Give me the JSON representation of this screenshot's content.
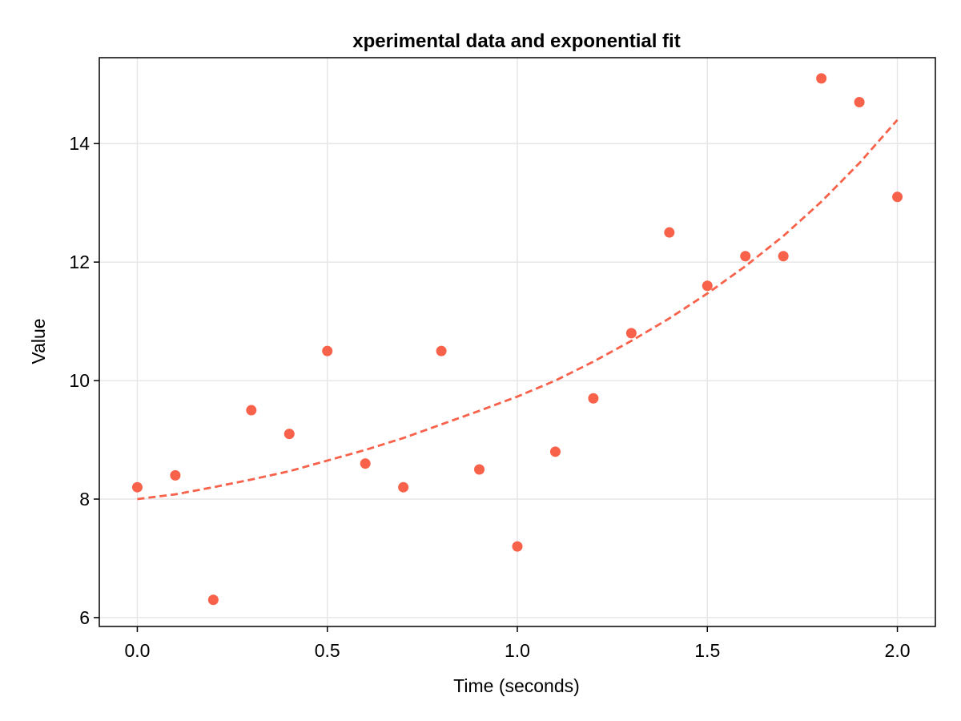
{
  "chart_data": {
    "type": "scatter",
    "title": "xperimental data and exponential fit",
    "xlabel": "Time (seconds)",
    "ylabel": "Value",
    "xlim": [
      -0.1,
      2.1
    ],
    "ylim": [
      5.85,
      15.45
    ],
    "xticks": [
      0.0,
      0.5,
      1.0,
      1.5,
      2.0
    ],
    "xtick_labels": [
      "0.0",
      "0.5",
      "1.0",
      "1.5",
      "2.0"
    ],
    "yticks": [
      6,
      8,
      10,
      12,
      14
    ],
    "ytick_labels": [
      "6",
      "8",
      "10",
      "12",
      "14"
    ],
    "grid": true,
    "legend": "none",
    "series": [
      {
        "kind": "scatter",
        "color": "#f8614a",
        "x": [
          0.0,
          0.1,
          0.2,
          0.3,
          0.4,
          0.5,
          0.6,
          0.7,
          0.8,
          0.9,
          1.0,
          1.1,
          1.2,
          1.3,
          1.4,
          1.5,
          1.6,
          1.7,
          1.8,
          1.9,
          2.0
        ],
        "y": [
          8.2,
          8.4,
          6.3,
          9.5,
          9.1,
          10.5,
          8.6,
          8.2,
          10.5,
          8.5,
          7.2,
          8.8,
          9.7,
          10.8,
          12.5,
          11.6,
          12.1,
          12.1,
          15.1,
          14.7,
          13.1
        ]
      },
      {
        "kind": "line",
        "style": "dashed",
        "color": "#f8614a",
        "x": [
          0.0,
          0.1,
          0.2,
          0.3,
          0.4,
          0.5,
          0.6,
          0.7,
          0.8,
          0.9,
          1.0,
          1.1,
          1.2,
          1.3,
          1.4,
          1.5,
          1.6,
          1.7,
          1.8,
          1.9,
          2.0
        ],
        "y": [
          8.0,
          8.08,
          8.2,
          8.33,
          8.47,
          8.65,
          8.83,
          9.03,
          9.26,
          9.49,
          9.73,
          10.0,
          10.32,
          10.67,
          11.05,
          11.47,
          11.93,
          12.44,
          13.02,
          13.67,
          14.4
        ]
      }
    ]
  }
}
